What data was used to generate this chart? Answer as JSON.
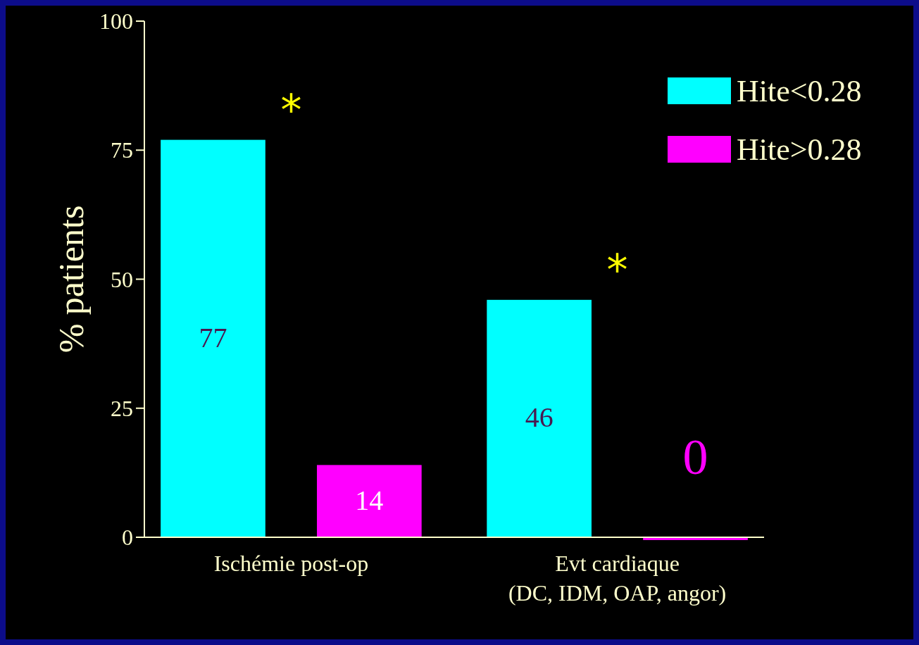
{
  "chart_data": {
    "type": "bar",
    "ylabel": "% patients",
    "categories": [
      "Ischémie post-op",
      "Evt cardiaque\n(DC, IDM, OAP, angor)"
    ],
    "series": [
      {
        "name": "Hite<0.28",
        "color": "#00ffff",
        "values": [
          77,
          46
        ],
        "value_labels": [
          "77",
          "46"
        ]
      },
      {
        "name": "Hite>0.28",
        "color": "#ff00ff",
        "values": [
          14,
          0
        ],
        "value_labels": [
          "14",
          "0"
        ]
      }
    ],
    "data_labels": true,
    "ylim": [
      0,
      100
    ],
    "yticks": [
      0,
      25,
      50,
      75,
      100
    ],
    "grid": false,
    "legend": "top right",
    "annotations": [
      "*",
      "*"
    ]
  }
}
